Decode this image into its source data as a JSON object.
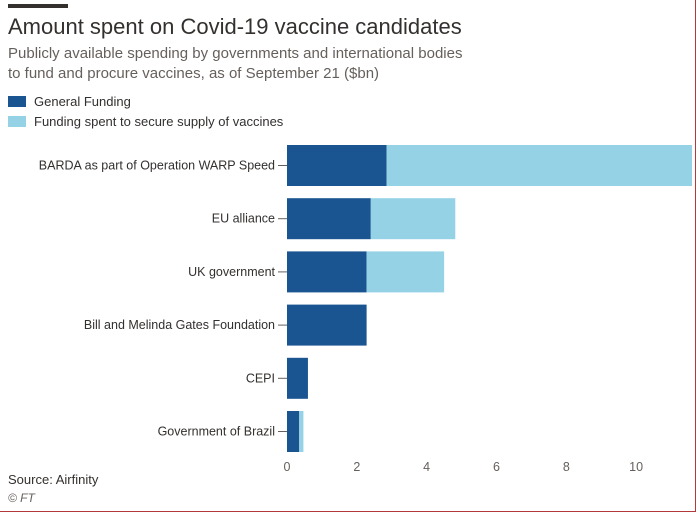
{
  "title": "Amount spent on Covid-19 vaccine candidates",
  "subtitle": "Publicly available spending by governments and international bodies to fund and procure vaccines, as of September 21 ($bn)",
  "source": "Source: Airfinity",
  "credit": "© FT",
  "chart_data": {
    "type": "bar",
    "orientation": "horizontal",
    "stacked": true,
    "categories": [
      "BARDA as part of Operation WARP Speed",
      "EU alliance",
      "UK government",
      "Bill and Melinda Gates Foundation",
      "CEPI",
      "Government of Brazil"
    ],
    "series": [
      {
        "name": "General Funding",
        "color": "#1a5591",
        "values": [
          2.85,
          2.4,
          2.28,
          2.28,
          0.6,
          0.35
        ]
      },
      {
        "name": "Funding spent to secure supply of vaccines",
        "color": "#96d2e6",
        "values": [
          8.75,
          2.42,
          2.22,
          0,
          0,
          0.12
        ]
      }
    ],
    "xlim": [
      0,
      11.6
    ],
    "xticks": [
      0,
      2,
      4,
      6,
      8,
      10
    ],
    "grid": false,
    "legend": "top-left"
  }
}
